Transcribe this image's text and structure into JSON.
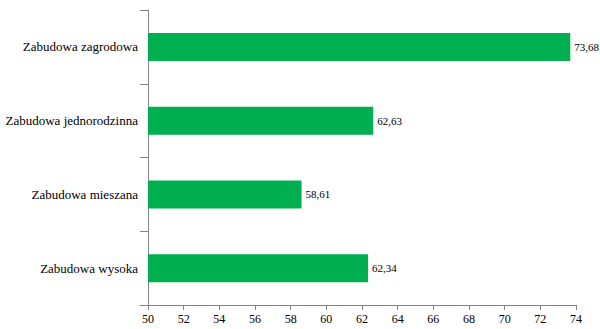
{
  "chart_data": {
    "type": "bar",
    "orientation": "horizontal",
    "categories": [
      "Zabudowa zagrodowa",
      "Zabudowa jednorodzinna",
      "Zabudowa mieszana",
      "Zabudowa wysoka"
    ],
    "values": [
      73.68,
      62.63,
      58.61,
      62.34
    ],
    "value_labels": [
      "73,68",
      "62,63",
      "58,61",
      "62,34"
    ],
    "color": "#00b050",
    "xlim": [
      50,
      74
    ],
    "xticks": [
      50,
      52,
      54,
      56,
      58,
      60,
      62,
      64,
      66,
      68,
      70,
      72,
      74
    ],
    "grid": false,
    "data_labels": true
  }
}
